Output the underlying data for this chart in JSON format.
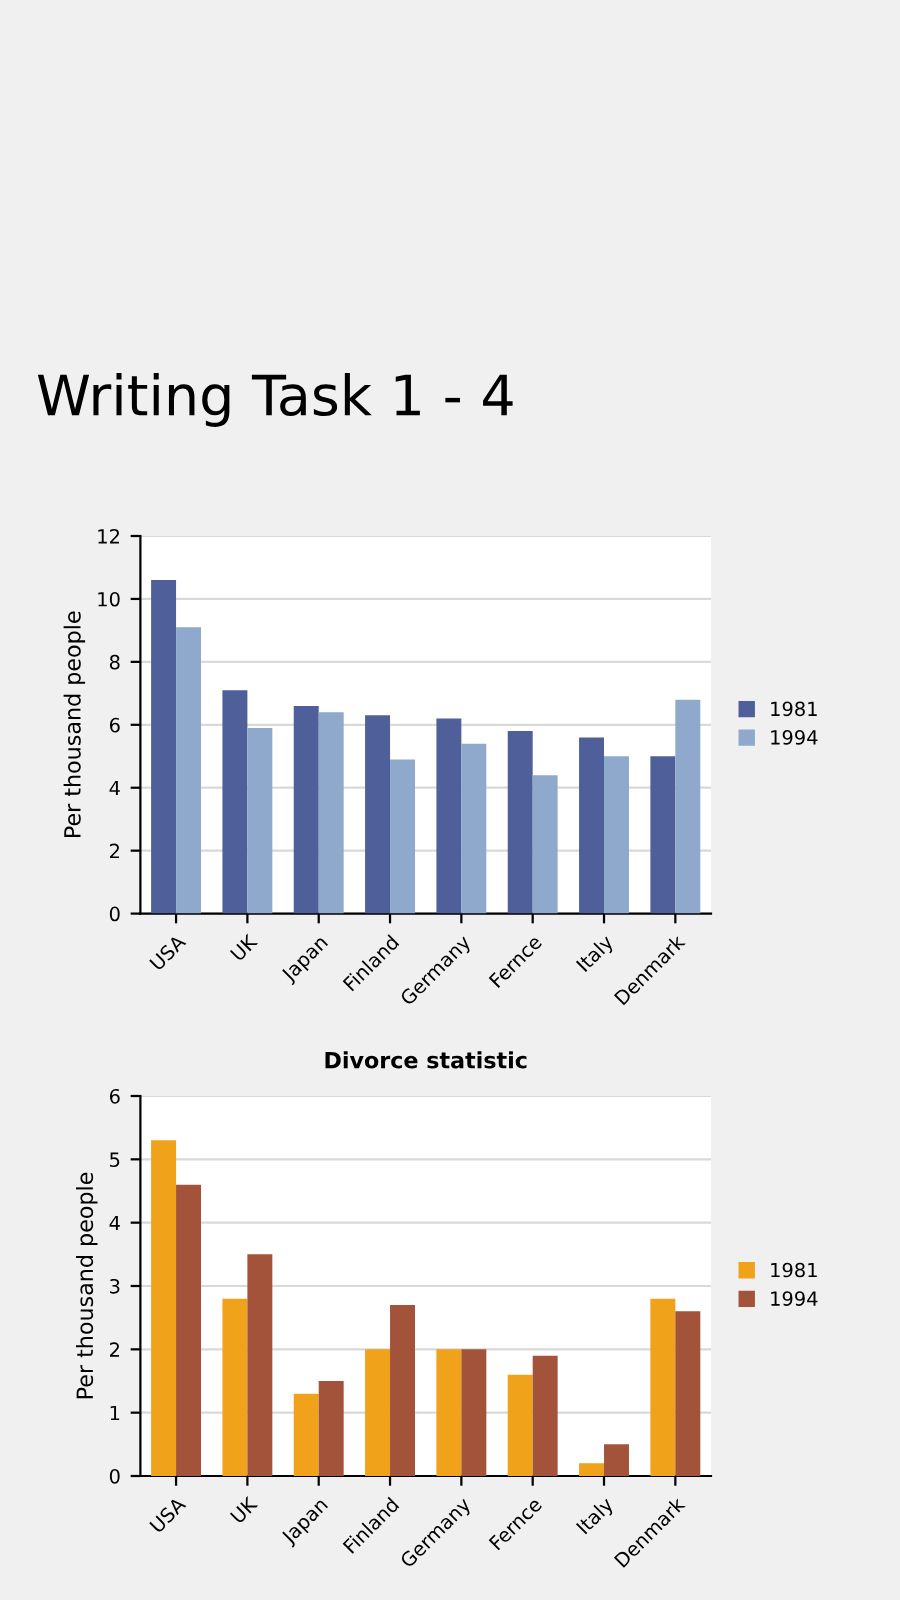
{
  "chart_data": [
    {
      "type": "bar",
      "title": "Writing Task 1 - 4",
      "ylabel": "Per thousand people",
      "categories": [
        "USA",
        "UK",
        "Japan",
        "Finland",
        "Germany",
        "Fernce",
        "Italy",
        "Denmark"
      ],
      "series": [
        {
          "name": "1981",
          "color": "#4f5f99",
          "values": [
            10.6,
            7.1,
            6.6,
            6.3,
            6.2,
            5.8,
            5.6,
            5.0
          ]
        },
        {
          "name": "1994",
          "color": "#8fa9cc",
          "values": [
            9.1,
            5.9,
            6.4,
            4.9,
            5.4,
            4.4,
            5.0,
            6.8
          ]
        }
      ],
      "ylim": [
        0,
        12
      ],
      "yticks": [
        0,
        2,
        4,
        6,
        8,
        10,
        12
      ],
      "grid": "y",
      "legend": "right"
    },
    {
      "type": "bar",
      "title": "Divorce statistic",
      "ylabel": "Per thousand people",
      "categories": [
        "USA",
        "UK",
        "Japan",
        "Finland",
        "Germany",
        "Fernce",
        "Italy",
        "Denmark"
      ],
      "series": [
        {
          "name": "1981",
          "color": "#f0a21a",
          "values": [
            5.3,
            2.8,
            1.3,
            2.0,
            2.0,
            1.6,
            0.2,
            2.8
          ]
        },
        {
          "name": "1994",
          "color": "#a3533a",
          "values": [
            4.6,
            3.5,
            1.5,
            2.7,
            2.0,
            1.9,
            0.5,
            2.6
          ]
        }
      ],
      "ylim": [
        0,
        6
      ],
      "yticks": [
        0,
        1,
        2,
        3,
        4,
        5,
        6
      ],
      "grid": "y",
      "legend": "right"
    }
  ]
}
